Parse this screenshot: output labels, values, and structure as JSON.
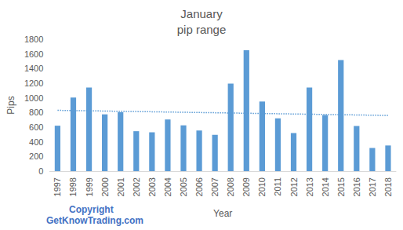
{
  "chart_data": {
    "type": "bar",
    "title": "January\npip range",
    "x_label": "Year",
    "y_label": "Pips",
    "annotations": [
      "Copyright",
      "GetKnowTrading.com"
    ],
    "categories": [
      "1997",
      "1998",
      "1999",
      "2000",
      "2001",
      "2002",
      "2003",
      "2004",
      "2005",
      "2006",
      "2007",
      "2008",
      "2009",
      "2010",
      "2011",
      "2012",
      "2013",
      "2014",
      "2015",
      "2016",
      "2017",
      "2018"
    ],
    "series": [
      {
        "type": "bar",
        "color": "#5b9bd5",
        "values": [
          620,
          1005,
          1140,
          775,
          805,
          545,
          530,
          705,
          625,
          555,
          495,
          1195,
          1650,
          950,
          720,
          520,
          1140,
          765,
          1515,
          615,
          315,
          350
        ]
      },
      {
        "type": "line",
        "line_style": "dotted",
        "color": "#5b9bd5",
        "values": [
          830,
          null,
          null,
          null,
          null,
          null,
          null,
          null,
          null,
          null,
          null,
          null,
          null,
          null,
          null,
          null,
          null,
          null,
          null,
          null,
          null,
          760
        ]
      }
    ],
    "ylim": [
      0,
      1800
    ],
    "yticks": [
      0,
      200,
      400,
      600,
      800,
      1000,
      1200,
      1400,
      1600,
      1800
    ],
    "grid": false
  }
}
